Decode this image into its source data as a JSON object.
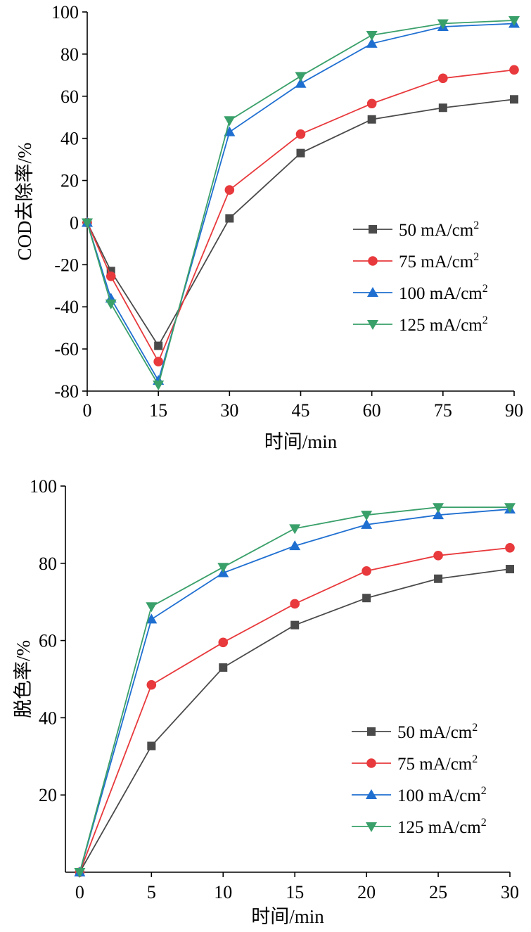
{
  "chart_data": [
    {
      "type": "line",
      "xlabel": "时间/min",
      "ylabel": "COD去除率/%",
      "xlim": [
        0,
        90
      ],
      "ylim": [
        -80,
        100
      ],
      "x_ticks": [
        "0",
        "15",
        "30",
        "45",
        "60",
        "75",
        "90"
      ],
      "y_ticks": [
        "-80",
        "-60",
        "-40",
        "-20",
        "0",
        "20",
        "40",
        "60",
        "80",
        "100"
      ],
      "legend_position": "lower-right",
      "grid": false,
      "x": [
        0,
        5,
        15,
        30,
        45,
        60,
        75,
        90
      ],
      "series": [
        {
          "name": "50 mA/cm",
          "unit_sup": "2",
          "color": "#4a4a4a",
          "marker": "square",
          "values": [
            0,
            -23,
            -58.5,
            2,
            33,
            49,
            54.5,
            58.5
          ]
        },
        {
          "name": "75 mA/cm",
          "unit_sup": "2",
          "color": "#e8393c",
          "marker": "circle",
          "values": [
            0,
            -25.5,
            -66,
            15.5,
            42,
            56.5,
            68.5,
            72.5
          ]
        },
        {
          "name": "100 mA/cm",
          "unit_sup": "2",
          "color": "#1f6fd1",
          "marker": "triangle-up",
          "values": [
            0,
            -36,
            -75,
            43,
            66,
            85,
            93,
            94.5
          ]
        },
        {
          "name": "125 mA/cm",
          "unit_sup": "2",
          "color": "#3aa06a",
          "marker": "triangle-down",
          "values": [
            0,
            -38.5,
            -77,
            48.5,
            69.5,
            89,
            94.5,
            96
          ]
        }
      ]
    },
    {
      "type": "line",
      "xlabel": "时间/min",
      "ylabel": "脱色率/%",
      "xlim": [
        -1,
        30
      ],
      "ylim": [
        0,
        100
      ],
      "x_ticks": [
        "0",
        "5",
        "10",
        "15",
        "20",
        "25",
        "30"
      ],
      "y_ticks": [
        "20",
        "40",
        "60",
        "80",
        "100"
      ],
      "legend_position": "lower-right",
      "grid": false,
      "x": [
        0,
        5,
        10,
        15,
        20,
        25,
        30
      ],
      "series": [
        {
          "name": "50 mA/cm",
          "unit_sup": "2",
          "color": "#4a4a4a",
          "marker": "square",
          "values": [
            0,
            32.7,
            53,
            64,
            71,
            76,
            78.5
          ]
        },
        {
          "name": "75 mA/cm",
          "unit_sup": "2",
          "color": "#e8393c",
          "marker": "circle",
          "values": [
            0,
            48.5,
            59.5,
            69.5,
            78,
            82,
            84
          ]
        },
        {
          "name": "100 mA/cm",
          "unit_sup": "2",
          "color": "#1f6fd1",
          "marker": "triangle-up",
          "values": [
            0,
            65.5,
            77.5,
            84.5,
            90,
            92.5,
            94
          ]
        },
        {
          "name": "125 mA/cm",
          "unit_sup": "2",
          "color": "#3aa06a",
          "marker": "triangle-down",
          "values": [
            0,
            68.8,
            79,
            89,
            92.5,
            94.5,
            94.5
          ]
        }
      ]
    }
  ]
}
